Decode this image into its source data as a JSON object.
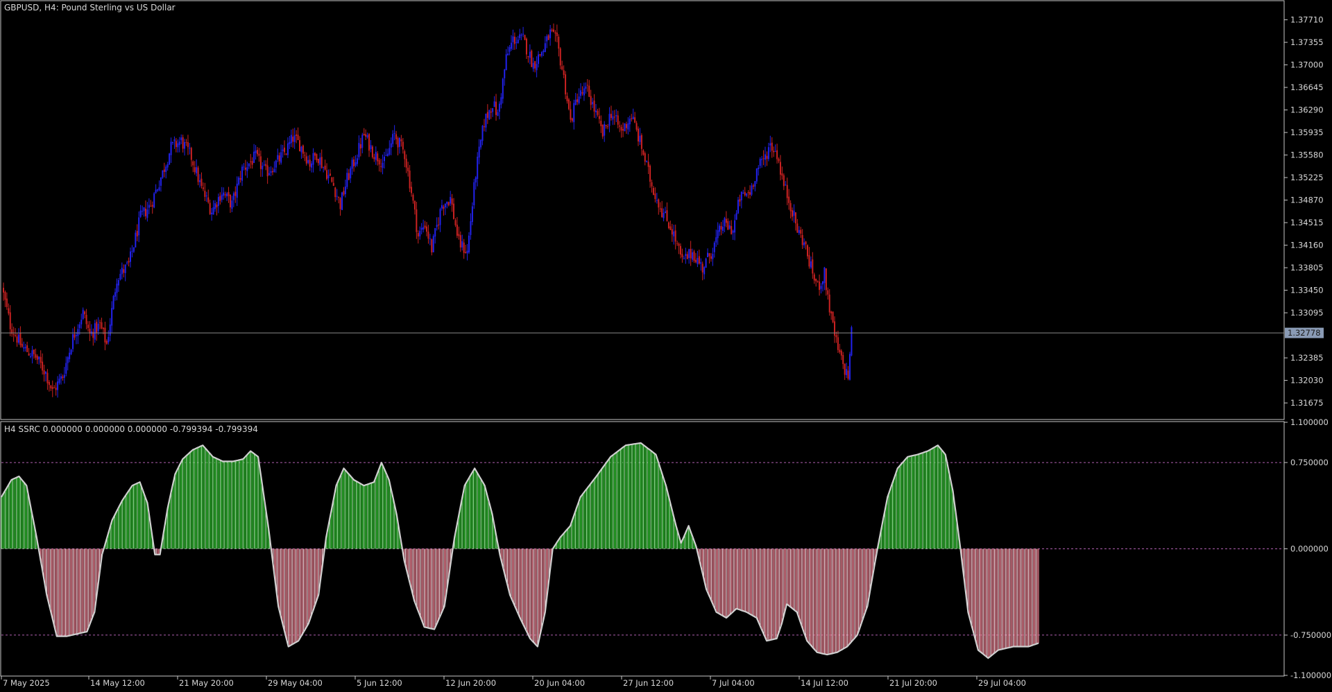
{
  "window": {
    "title": "GBPUSD, H4:  Pound Sterling vs US Dollar",
    "indicator_label": "H4 SSRC 0.000000 0.000000 0.000000 -0.799394 -0.799394"
  },
  "colors": {
    "background": "#000000",
    "grid_border": "#c0c0c0",
    "bull_candle": "#2222ee",
    "bear_candle": "#cc2222",
    "current_price_line": "#888888",
    "price_tag_bg": "#8a9bb5",
    "hist_positive": "#2db82d",
    "hist_positive_light": "#8ae88a",
    "hist_negative": "#e07a8a",
    "hist_negative_light": "#f4c6cf",
    "ssrc_line": "#d0d0d0",
    "level_dash": "#b060b0"
  },
  "chart_data": [
    {
      "type": "candlestick",
      "name": "GBPUSD H4",
      "ylim": [
        1.31425,
        1.38
      ],
      "y_ticks": [
        "1.37710",
        "1.37355",
        "1.37000",
        "1.36645",
        "1.36290",
        "1.35935",
        "1.35580",
        "1.35225",
        "1.34870",
        "1.34515",
        "1.34160",
        "1.33805",
        "1.33450",
        "1.33095",
        "1.32385",
        "1.32030",
        "1.31675"
      ],
      "current_price": "1.32778",
      "x_labels": [
        "7 May 2025",
        "14 May 12:00",
        "21 May 20:00",
        "29 May 04:00",
        "5 Jun 12:00",
        "12 Jun 20:00",
        "20 Jun 04:00",
        "27 Jun 12:00",
        "7 Jul 04:00",
        "14 Jul 12:00",
        "21 Jul 20:00",
        "29 Jul 04:00"
      ],
      "x_label_bars": [
        0,
        44,
        88,
        132,
        176,
        220,
        264,
        308,
        352,
        396,
        440,
        484
      ],
      "bars": 502,
      "close_path": [
        [
          0,
          1.335
        ],
        [
          5,
          1.329
        ],
        [
          12,
          1.3255
        ],
        [
          20,
          1.324
        ],
        [
          26,
          1.3215
        ],
        [
          30,
          1.3185
        ],
        [
          36,
          1.321
        ],
        [
          42,
          1.327
        ],
        [
          48,
          1.331
        ],
        [
          52,
          1.3275
        ],
        [
          58,
          1.329
        ],
        [
          62,
          1.326
        ],
        [
          68,
          1.3365
        ],
        [
          75,
          1.3385
        ],
        [
          82,
          1.346
        ],
        [
          88,
          1.348
        ],
        [
          95,
          1.353
        ],
        [
          100,
          1.357
        ],
        [
          106,
          1.358
        ],
        [
          112,
          1.3555
        ],
        [
          118,
          1.3505
        ],
        [
          124,
          1.347
        ],
        [
          130,
          1.35
        ],
        [
          136,
          1.348
        ],
        [
          142,
          1.3535
        ],
        [
          150,
          1.3555
        ],
        [
          156,
          1.353
        ],
        [
          162,
          1.3545
        ],
        [
          168,
          1.3565
        ],
        [
          172,
          1.3585
        ],
        [
          176,
          1.3575
        ],
        [
          182,
          1.3545
        ],
        [
          186,
          1.356
        ],
        [
          190,
          1.354
        ],
        [
          196,
          1.351
        ],
        [
          200,
          1.348
        ],
        [
          204,
          1.352
        ],
        [
          210,
          1.356
        ],
        [
          214,
          1.359
        ],
        [
          220,
          1.356
        ],
        [
          226,
          1.3545
        ],
        [
          232,
          1.359
        ],
        [
          238,
          1.356
        ],
        [
          242,
          1.35
        ],
        [
          246,
          1.343
        ],
        [
          250,
          1.345
        ],
        [
          254,
          1.341
        ],
        [
          260,
          1.348
        ],
        [
          265,
          1.349
        ],
        [
          270,
          1.342
        ],
        [
          275,
          1.3405
        ],
        [
          280,
          1.353
        ],
        [
          285,
          1.361
        ],
        [
          290,
          1.364
        ],
        [
          293,
          1.362
        ],
        [
          298,
          1.371
        ],
        [
          302,
          1.374
        ],
        [
          308,
          1.374
        ],
        [
          314,
          1.37
        ],
        [
          320,
          1.3725
        ],
        [
          324,
          1.375
        ],
        [
          328,
          1.3735
        ],
        [
          332,
          1.368
        ],
        [
          336,
          1.361
        ],
        [
          340,
          1.365
        ],
        [
          346,
          1.366
        ],
        [
          350,
          1.363
        ],
        [
          355,
          1.359
        ],
        [
          360,
          1.3625
        ],
        [
          366,
          1.3595
        ],
        [
          372,
          1.362
        ],
        [
          378,
          1.357
        ],
        [
          384,
          1.351
        ],
        [
          390,
          1.347
        ],
        [
          396,
          1.344
        ],
        [
          402,
          1.339
        ],
        [
          408,
          1.3405
        ],
        [
          414,
          1.338
        ],
        [
          420,
          1.341
        ],
        [
          426,
          1.345
        ],
        [
          432,
          1.344
        ],
        [
          436,
          1.349
        ],
        [
          442,
          1.35
        ],
        [
          446,
          1.3535
        ],
        [
          450,
          1.355
        ],
        [
          454,
          1.3575
        ],
        [
          458,
          1.356
        ],
        [
          462,
          1.351
        ],
        [
          466,
          1.348
        ],
        [
          470,
          1.344
        ],
        [
          474,
          1.342
        ],
        [
          478,
          1.338
        ],
        [
          482,
          1.335
        ],
        [
          486,
          1.337
        ],
        [
          490,
          1.33
        ],
        [
          494,
          1.325
        ],
        [
          498,
          1.322
        ],
        [
          500,
          1.321
        ],
        [
          502,
          1.3278
        ]
      ]
    },
    {
      "type": "histogram_line",
      "name": "H4 SSRC",
      "ylim": [
        -1.1,
        1.1
      ],
      "y_ticks": [
        "1.100000",
        "0.750000",
        "0.000000",
        "-0.750000",
        "-1.100000"
      ],
      "levels": [
        0.75,
        0.0,
        -0.75
      ],
      "bars": 502,
      "curve": [
        [
          0,
          0.45
        ],
        [
          4,
          0.6
        ],
        [
          7,
          0.63
        ],
        [
          10,
          0.55
        ],
        [
          14,
          0.1
        ],
        [
          18,
          -0.4
        ],
        [
          22,
          -0.76
        ],
        [
          26,
          -0.76
        ],
        [
          30,
          -0.74
        ],
        [
          34,
          -0.72
        ],
        [
          37,
          -0.55
        ],
        [
          40,
          -0.05
        ],
        [
          44,
          0.25
        ],
        [
          48,
          0.42
        ],
        [
          52,
          0.55
        ],
        [
          55,
          0.58
        ],
        [
          58,
          0.4
        ],
        [
          61,
          -0.05
        ],
        [
          63,
          -0.05
        ],
        [
          66,
          0.35
        ],
        [
          69,
          0.65
        ],
        [
          72,
          0.78
        ],
        [
          76,
          0.86
        ],
        [
          80,
          0.9
        ],
        [
          84,
          0.8
        ],
        [
          88,
          0.76
        ],
        [
          92,
          0.76
        ],
        [
          96,
          0.78
        ],
        [
          99,
          0.85
        ],
        [
          102,
          0.8
        ],
        [
          106,
          0.2
        ],
        [
          110,
          -0.5
        ],
        [
          114,
          -0.85
        ],
        [
          118,
          -0.8
        ],
        [
          122,
          -0.65
        ],
        [
          126,
          -0.4
        ],
        [
          129,
          0.1
        ],
        [
          133,
          0.55
        ],
        [
          136,
          0.7
        ],
        [
          140,
          0.6
        ],
        [
          144,
          0.55
        ],
        [
          148,
          0.58
        ],
        [
          151,
          0.75
        ],
        [
          154,
          0.6
        ],
        [
          157,
          0.3
        ],
        [
          160,
          -0.1
        ],
        [
          164,
          -0.45
        ],
        [
          168,
          -0.68
        ],
        [
          172,
          -0.7
        ],
        [
          176,
          -0.5
        ],
        [
          180,
          0.1
        ],
        [
          184,
          0.55
        ],
        [
          188,
          0.7
        ],
        [
          192,
          0.55
        ],
        [
          195,
          0.3
        ],
        [
          198,
          -0.05
        ],
        [
          202,
          -0.4
        ],
        [
          206,
          -0.6
        ],
        [
          210,
          -0.78
        ],
        [
          213,
          -0.85
        ],
        [
          216,
          -0.55
        ],
        [
          219,
          0.0
        ],
        [
          222,
          0.1
        ],
        [
          226,
          0.2
        ],
        [
          230,
          0.45
        ],
        [
          236,
          0.62
        ],
        [
          242,
          0.8
        ],
        [
          248,
          0.9
        ],
        [
          254,
          0.92
        ],
        [
          260,
          0.82
        ],
        [
          264,
          0.55
        ],
        [
          268,
          0.2
        ],
        [
          270,
          0.05
        ],
        [
          273,
          0.2
        ],
        [
          276,
          0.02
        ],
        [
          280,
          -0.35
        ],
        [
          284,
          -0.55
        ],
        [
          288,
          -0.6
        ],
        [
          292,
          -0.52
        ],
        [
          296,
          -0.55
        ],
        [
          300,
          -0.6
        ],
        [
          304,
          -0.8
        ],
        [
          308,
          -0.78
        ],
        [
          310,
          -0.65
        ],
        [
          312,
          -0.48
        ],
        [
          316,
          -0.55
        ],
        [
          320,
          -0.8
        ],
        [
          324,
          -0.9
        ],
        [
          328,
          -0.92
        ],
        [
          332,
          -0.9
        ],
        [
          336,
          -0.85
        ],
        [
          340,
          -0.75
        ],
        [
          344,
          -0.5
        ],
        [
          348,
          0.0
        ],
        [
          352,
          0.45
        ],
        [
          356,
          0.7
        ],
        [
          360,
          0.8
        ],
        [
          364,
          0.82
        ],
        [
          368,
          0.85
        ],
        [
          372,
          0.9
        ],
        [
          375,
          0.82
        ],
        [
          378,
          0.5
        ],
        [
          381,
          0.0
        ],
        [
          384,
          -0.55
        ],
        [
          388,
          -0.88
        ],
        [
          392,
          -0.95
        ],
        [
          396,
          -0.88
        ],
        [
          402,
          -0.85
        ],
        [
          408,
          -0.85
        ],
        [
          412,
          -0.82
        ]
      ]
    }
  ]
}
